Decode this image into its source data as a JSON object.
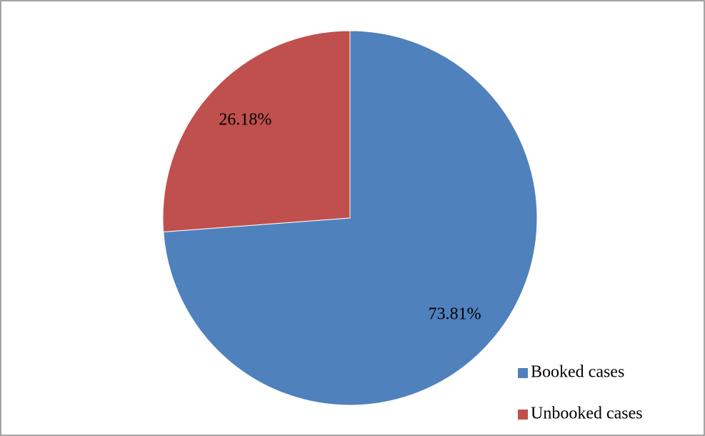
{
  "chart_data": {
    "type": "pie",
    "categories": [
      "Booked cases",
      "Unbooked cases"
    ],
    "values": [
      73.81,
      26.18
    ],
    "value_labels": [
      "73.81%",
      "26.18%"
    ],
    "colors": [
      "#4f81bd",
      "#c0504d"
    ],
    "legend": "bottom-right"
  }
}
